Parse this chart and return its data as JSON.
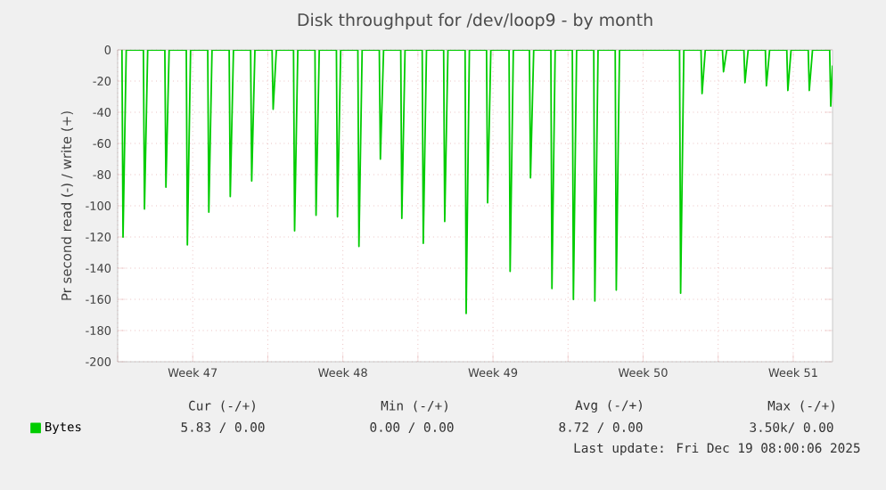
{
  "chart_data": {
    "type": "line",
    "title": "Disk throughput for /dev/loop9 - by month",
    "ylabel": "Pr second read (-) / write (+)",
    "xlim": [
      "2025-11-16T00:00",
      "2025-12-19T08:00"
    ],
    "ylim": [
      -200,
      0
    ],
    "xticks": [
      {
        "value": "2025-11-16",
        "label": null
      },
      {
        "value": "2025-11-19T12:00",
        "label": "Week 47"
      },
      {
        "value": "2025-11-23",
        "label": null
      },
      {
        "value": "2025-11-26T12:00",
        "label": "Week 48"
      },
      {
        "value": "2025-11-30",
        "label": null
      },
      {
        "value": "2025-12-03T12:00",
        "label": "Week 49"
      },
      {
        "value": "2025-12-07",
        "label": null
      },
      {
        "value": "2025-12-10T12:00",
        "label": "Week 50"
      },
      {
        "value": "2025-12-14",
        "label": null
      },
      {
        "value": "2025-12-17T12:00",
        "label": "Week 51"
      }
    ],
    "yticks": [
      -200,
      -180,
      -160,
      -140,
      -120,
      -100,
      -80,
      -60,
      -40,
      -20,
      0
    ],
    "grid": true,
    "legend": "bottom left",
    "marker": "none",
    "annotations": [
      "Cur (-/+)",
      "Min (-/+)",
      "Avg (-/+)",
      "Max (-/+)",
      "5.83 /  0.00",
      "0.00 /  0.00",
      "8.72 /  0.00",
      "3.50k/  0.00",
      "Last update: Fri Dec 19 08:00:06 2025"
    ],
    "series": [
      {
        "name": "Bytes",
        "color": "#00cc00",
        "x": [
          "2025-11-16T04:48",
          "2025-11-16T06:00",
          "2025-11-16T09:36",
          "2025-11-17T04:48",
          "2025-11-17T06:00",
          "2025-11-17T09:36",
          "2025-11-18T04:48",
          "2025-11-18T06:00",
          "2025-11-18T09:36",
          "2025-11-19T04:48",
          "2025-11-19T06:00",
          "2025-11-19T09:36",
          "2025-11-20T04:48",
          "2025-11-20T06:00",
          "2025-11-20T09:36",
          "2025-11-21T04:48",
          "2025-11-21T06:00",
          "2025-11-21T09:36",
          "2025-11-22T04:48",
          "2025-11-22T06:00",
          "2025-11-22T09:36",
          "2025-11-23T04:48",
          "2025-11-23T06:00",
          "2025-11-23T09:36",
          "2025-11-24T04:48",
          "2025-11-24T06:00",
          "2025-11-24T09:36",
          "2025-11-25T04:48",
          "2025-11-25T06:00",
          "2025-11-25T09:36",
          "2025-11-26T04:48",
          "2025-11-26T06:00",
          "2025-11-26T09:36",
          "2025-11-27T04:48",
          "2025-11-27T06:00",
          "2025-11-27T09:36",
          "2025-11-28T04:48",
          "2025-11-28T06:00",
          "2025-11-28T09:36",
          "2025-11-29T04:48",
          "2025-11-29T06:00",
          "2025-11-29T09:36",
          "2025-11-30T04:48",
          "2025-11-30T06:00",
          "2025-11-30T09:36",
          "2025-12-01T04:48",
          "2025-12-01T06:00",
          "2025-12-01T09:36",
          "2025-12-02T04:48",
          "2025-12-02T06:00",
          "2025-12-02T09:36",
          "2025-12-03T04:48",
          "2025-12-03T06:00",
          "2025-12-03T09:36",
          "2025-12-04T06:00",
          "2025-12-04T07:12",
          "2025-12-04T10:48",
          "2025-12-05T04:48",
          "2025-12-05T06:00",
          "2025-12-05T09:36",
          "2025-12-06T04:48",
          "2025-12-06T06:00",
          "2025-12-06T09:36",
          "2025-12-07T04:48",
          "2025-12-07T06:00",
          "2025-12-07T09:36",
          "2025-12-08T04:48",
          "2025-12-08T06:00",
          "2025-12-08T09:36",
          "2025-12-09T04:48",
          "2025-12-09T06:00",
          "2025-12-09T09:36",
          "2025-12-12T04:48",
          "2025-12-12T06:00",
          "2025-12-12T09:36",
          "2025-12-13T04:48",
          "2025-12-13T06:00",
          "2025-12-13T09:36",
          "2025-12-14T04:48",
          "2025-12-14T06:00",
          "2025-12-14T09:36",
          "2025-12-15T04:48",
          "2025-12-15T06:00",
          "2025-12-15T09:36",
          "2025-12-16T04:48",
          "2025-12-16T06:00",
          "2025-12-16T09:36",
          "2025-12-17T04:48",
          "2025-12-17T06:00",
          "2025-12-17T09:36",
          "2025-12-18T04:48",
          "2025-12-18T06:00",
          "2025-12-18T09:36",
          "2025-12-19T04:48",
          "2025-12-19T06:00",
          "2025-12-19T08:00"
        ],
        "values": [
          0,
          -120,
          0,
          0,
          -102,
          0,
          0,
          -88,
          0,
          0,
          -125,
          0,
          0,
          -104,
          0,
          0,
          -94,
          0,
          0,
          -84,
          0,
          0,
          -38,
          0,
          0,
          -116,
          0,
          0,
          -106,
          0,
          0,
          -107,
          0,
          0,
          -126,
          0,
          0,
          -70,
          0,
          0,
          -108,
          0,
          0,
          -124,
          0,
          0,
          -110,
          0,
          0,
          -169,
          0,
          0,
          -98,
          0,
          0,
          -142,
          0,
          0,
          -82,
          0,
          0,
          -153,
          0,
          0,
          -160,
          0,
          0,
          -161,
          0,
          0,
          -154,
          0,
          0,
          -156,
          0,
          0,
          -28,
          0,
          0,
          -14,
          0,
          0,
          -21,
          0,
          0,
          -23,
          0,
          0,
          -26,
          0,
          0,
          -26,
          0,
          0,
          -36,
          -10
        ]
      }
    ]
  }
}
